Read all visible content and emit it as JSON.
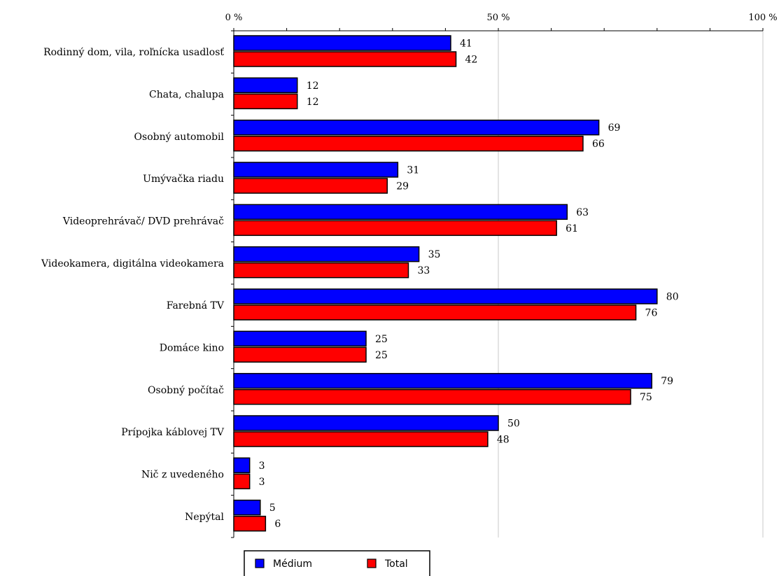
{
  "chart_data": {
    "type": "bar",
    "orientation": "horizontal",
    "categories": [
      "Rodinný dom, vila, roľnícka usadlosť",
      "Chata, chalupa",
      "Osobný automobil",
      "Umývačka riadu",
      "Videoprehrávač/ DVD prehrávač",
      "Videokamera, digitálna videokamera",
      "Farebná TV",
      "Domáce kino",
      "Osobný počítač",
      "Prípojka káblovej TV",
      "Nič z uvedeného",
      "Nepýtal"
    ],
    "series": [
      {
        "name": "Médium",
        "color": "#0000ff",
        "values": [
          41,
          12,
          69,
          31,
          63,
          35,
          80,
          25,
          79,
          50,
          3,
          5
        ]
      },
      {
        "name": "Total",
        "color": "#ff0000",
        "values": [
          42,
          12,
          66,
          29,
          61,
          33,
          76,
          25,
          75,
          48,
          3,
          6
        ]
      }
    ],
    "xlim": [
      0,
      100
    ],
    "xticks": [
      "0 %",
      "50 %",
      "100 %"
    ],
    "xtick_values": [
      0,
      50,
      100
    ],
    "grid": true,
    "axis_position": "top",
    "legend_position": "bottom-left"
  }
}
